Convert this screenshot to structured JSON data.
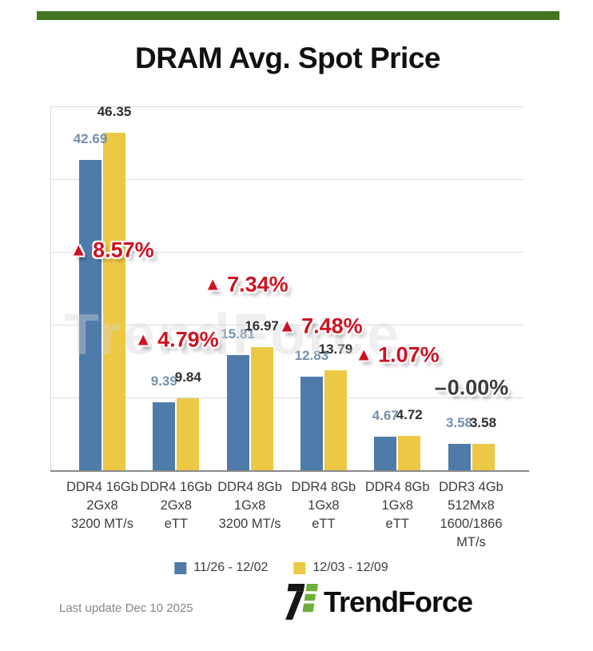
{
  "header": {
    "title": "DRAM Avg. Spot Price"
  },
  "colors": {
    "accent_green": "#417521",
    "series_1_blue": "#4E7BA9",
    "series_2_yellow": "#ECC845",
    "up_red": "#CD1322",
    "flat_gray": "#3C3C3C",
    "logo_green": "#6FAF3B"
  },
  "chart_data": {
    "type": "bar",
    "title": "DRAM Avg. Spot Price",
    "categories": [
      [
        "DDR4 16Gb",
        "2Gx8",
        "3200 MT/s"
      ],
      [
        "DDR4 16Gb",
        "2Gx8",
        "eTT"
      ],
      [
        "DDR4 8Gb",
        "1Gx8",
        "3200 MT/s"
      ],
      [
        "DDR4 8Gb",
        "1Gx8",
        "eTT"
      ],
      [
        "DDR4 8Gb",
        "1Gx8",
        "eTT"
      ],
      [
        "DDR3 4Gb",
        "512Mx8",
        "1600/1866",
        "MT/s"
      ]
    ],
    "series": [
      {
        "name": "11/26 - 12/02",
        "color": "#4E7BA9",
        "label_color": "#7490AC",
        "values": [
          42.69,
          9.39,
          15.81,
          12.83,
          4.67,
          3.58
        ]
      },
      {
        "name": "12/03 - 12/09",
        "color": "#ECC845",
        "label_color": "#2F2F2F",
        "values": [
          46.35,
          9.84,
          16.97,
          13.79,
          4.72,
          3.58
        ]
      }
    ],
    "change_annotations": [
      {
        "prefix": "▲",
        "text": "8.57%",
        "direction": "up"
      },
      {
        "prefix": "▲",
        "text": "4.79%",
        "direction": "up"
      },
      {
        "prefix": "▲",
        "text": "7.34%",
        "direction": "up"
      },
      {
        "prefix": "▲",
        "text": "7.48%",
        "direction": "up"
      },
      {
        "prefix": "▲",
        "text": "1.07%",
        "direction": "up"
      },
      {
        "prefix": "–",
        "text": "0.00%",
        "direction": "flat"
      }
    ],
    "ylim": [
      0,
      50
    ],
    "grid_step": 10,
    "grid": true,
    "legend_position": "bottom",
    "xlabel": "",
    "ylabel": ""
  },
  "watermark": "TrendForce",
  "footer": {
    "last_update": "Last update Dec 10 2025",
    "brand": "TrendForce"
  }
}
